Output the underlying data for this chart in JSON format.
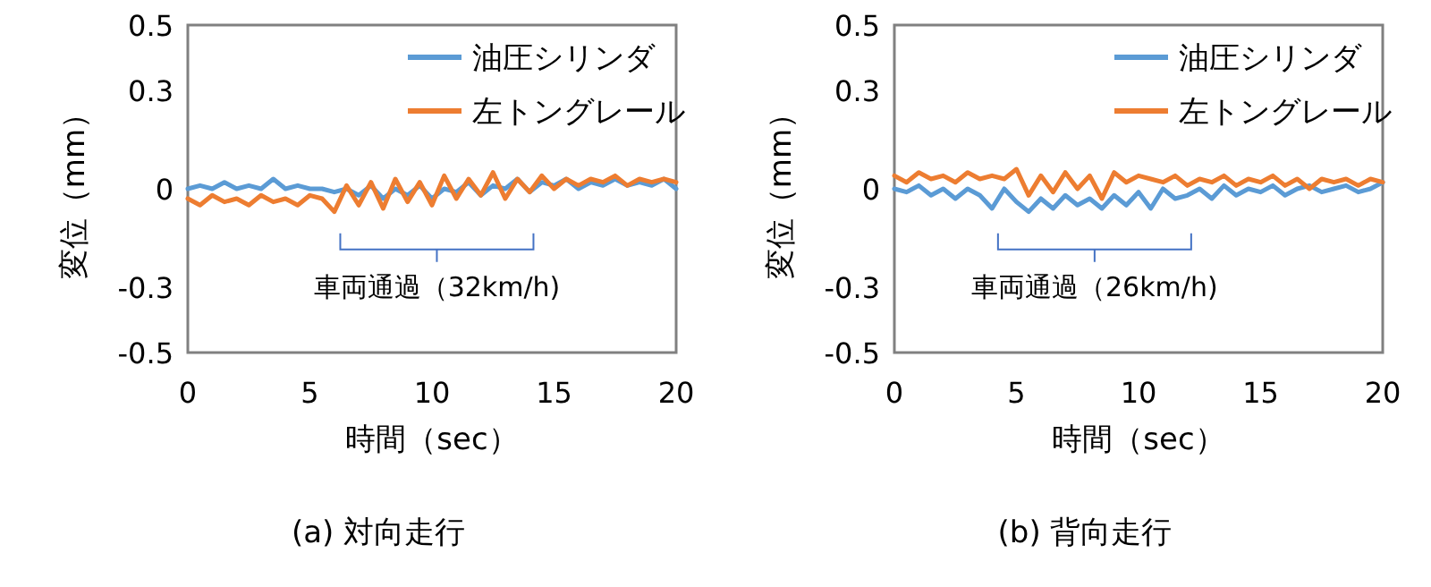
{
  "chart_data": [
    {
      "type": "line",
      "title": "(a) 対向走行",
      "xlabel": "時間（sec）",
      "ylabel": "変位（mm）",
      "x": [
        0,
        0.5,
        1,
        1.5,
        2,
        2.5,
        3,
        3.5,
        4,
        4.5,
        5,
        5.5,
        6,
        6.5,
        7,
        7.5,
        8,
        8.5,
        9,
        9.5,
        10,
        10.5,
        11,
        11.5,
        12,
        12.5,
        13,
        13.5,
        14,
        14.5,
        15,
        15.5,
        16,
        16.5,
        17,
        17.5,
        18,
        18.5,
        19,
        19.5,
        20
      ],
      "xlim": [
        0,
        20
      ],
      "xticks": [
        0,
        5,
        10,
        15,
        20
      ],
      "ylim": [
        -0.5,
        0.5
      ],
      "yticks": [
        -0.5,
        -0.3,
        0,
        0.3,
        0.5
      ],
      "legend": "top right",
      "annotations": [
        "車両通過（32km/h)"
      ],
      "series": [
        {
          "name": "油圧シリンダ",
          "color": "#5b9bd5",
          "values": [
            0,
            0.01,
            0,
            0.02,
            0,
            0.01,
            0,
            0.03,
            0,
            0.01,
            0,
            0,
            -0.01,
            0,
            -0.02,
            0.01,
            -0.03,
            0,
            -0.02,
            0.01,
            -0.03,
            0,
            -0.01,
            0.02,
            -0.02,
            0.01,
            0,
            0.03,
            -0.01,
            0.02,
            0.01,
            0.03,
            0,
            0.02,
            0.01,
            0.03,
            0.01,
            0.02,
            0.01,
            0.03,
            0
          ]
        },
        {
          "name": "左トングレール",
          "color": "#ed7d31",
          "values": [
            -0.03,
            -0.05,
            -0.02,
            -0.04,
            -0.03,
            -0.05,
            -0.02,
            -0.04,
            -0.03,
            -0.05,
            -0.02,
            -0.03,
            -0.07,
            0.01,
            -0.05,
            0.02,
            -0.06,
            0.03,
            -0.04,
            0.02,
            -0.05,
            0.04,
            -0.03,
            0.03,
            -0.02,
            0.05,
            -0.03,
            0.03,
            -0.01,
            0.04,
            0,
            0.03,
            0.01,
            0.03,
            0.02,
            0.04,
            0.01,
            0.03,
            0.02,
            0.03,
            0.02
          ]
        }
      ]
    },
    {
      "type": "line",
      "title": "(b) 背向走行",
      "xlabel": "時間（sec）",
      "ylabel": "変位（mm）",
      "x": [
        0,
        0.5,
        1,
        1.5,
        2,
        2.5,
        3,
        3.5,
        4,
        4.5,
        5,
        5.5,
        6,
        6.5,
        7,
        7.5,
        8,
        8.5,
        9,
        9.5,
        10,
        10.5,
        11,
        11.5,
        12,
        12.5,
        13,
        13.5,
        14,
        14.5,
        15,
        15.5,
        16,
        16.5,
        17,
        17.5,
        18,
        18.5,
        19,
        19.5,
        20
      ],
      "xlim": [
        0,
        20
      ],
      "xticks": [
        0,
        5,
        10,
        15,
        20
      ],
      "ylim": [
        -0.5,
        0.5
      ],
      "yticks": [
        -0.5,
        -0.3,
        0,
        0.3,
        0.5
      ],
      "legend": "top right",
      "annotations": [
        "車両通過（26km/h)"
      ],
      "series": [
        {
          "name": "油圧シリンダ",
          "color": "#5b9bd5",
          "values": [
            0,
            -0.01,
            0.01,
            -0.02,
            0,
            -0.03,
            0,
            -0.02,
            -0.06,
            0,
            -0.04,
            -0.07,
            -0.03,
            -0.06,
            -0.02,
            -0.05,
            -0.03,
            -0.06,
            -0.02,
            -0.05,
            -0.01,
            -0.06,
            0,
            -0.03,
            -0.02,
            0,
            -0.03,
            0.01,
            -0.02,
            0,
            -0.01,
            0.01,
            -0.02,
            0,
            0.01,
            -0.01,
            0,
            0.01,
            -0.01,
            0,
            0.02
          ]
        },
        {
          "name": "左トングレール",
          "color": "#ed7d31",
          "values": [
            0.04,
            0.02,
            0.05,
            0.03,
            0.04,
            0.02,
            0.05,
            0.03,
            0.04,
            0.03,
            0.06,
            -0.02,
            0.04,
            -0.01,
            0.05,
            0,
            0.04,
            -0.03,
            0.05,
            0.02,
            0.04,
            0.03,
            0.02,
            0.04,
            0.01,
            0.03,
            0.02,
            0.04,
            0.01,
            0.03,
            0.02,
            0.04,
            0.01,
            0.03,
            0,
            0.03,
            0.02,
            0.03,
            0.01,
            0.03,
            0.02
          ]
        }
      ]
    }
  ]
}
